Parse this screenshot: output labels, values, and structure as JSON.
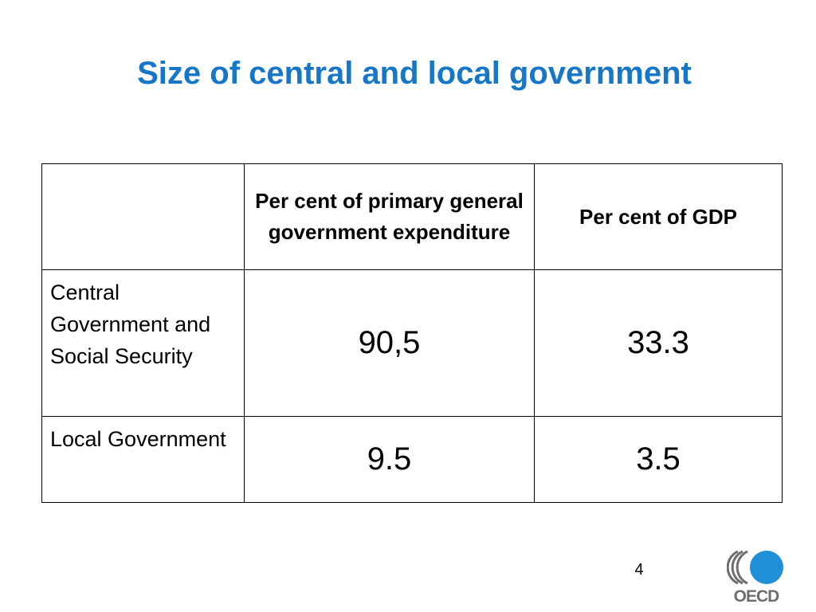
{
  "slide": {
    "title": "Size of central and local government",
    "page_number": "4"
  },
  "table": {
    "headers": [
      "",
      "Per cent of primary general government expenditure",
      "Per cent of GDP"
    ],
    "rows": [
      {
        "label": "Central Government and Social Security",
        "values": [
          "90,5",
          "33.3"
        ]
      },
      {
        "label": "Local Government",
        "values": [
          "9.5",
          "3.5"
        ]
      }
    ]
  },
  "logo": {
    "text": "OECD",
    "colors": {
      "circle": "#1f8fd8",
      "text": "#6d6e71"
    }
  },
  "colors": {
    "title": "#1677c8",
    "border": "#000000",
    "background": "#ffffff"
  }
}
